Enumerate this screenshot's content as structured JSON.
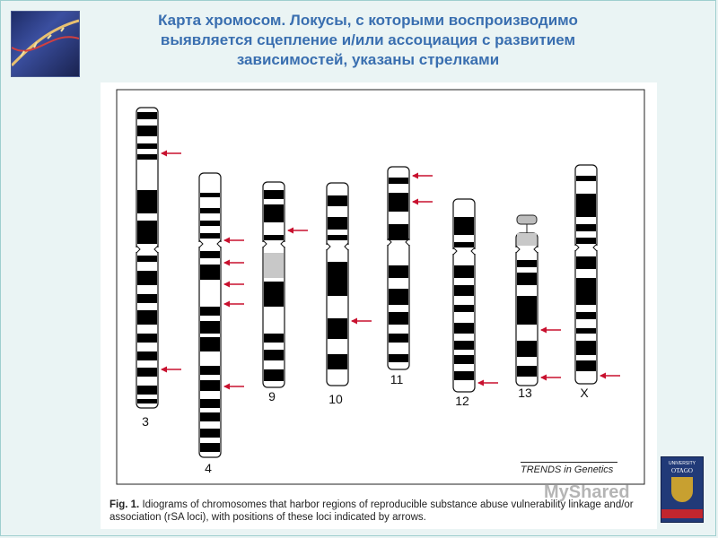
{
  "header": {
    "title_line1": "Карта  хромосом. Локусы, с которыми воспроизводимо",
    "title_line2": "выявляется  сцепление и/или ассоциация с развитием",
    "title_line3": "зависимостей, указаны стрелками"
  },
  "figure": {
    "source": "TRENDS in Genetics",
    "caption_label": "Fig. 1.",
    "caption_text": "Idiograms of chromosomes that harbor regions of reproducible substance abuse vulnerability linkage and/or association (rSA loci), with positions of these loci indicated by arrows.",
    "chromosomes": [
      {
        "label": "3",
        "arrows": 2
      },
      {
        "label": "4",
        "arrows": 5
      },
      {
        "label": "9",
        "arrows": 1
      },
      {
        "label": "10",
        "arrows": 1
      },
      {
        "label": "11",
        "arrows": 2
      },
      {
        "label": "12",
        "arrows": 1
      },
      {
        "label": "13",
        "arrows": 2
      },
      {
        "label": "X",
        "arrows": 1
      }
    ]
  },
  "watermark": "MyShared",
  "logo": {
    "line1": "UNIVERSITY",
    "line2": "OTAGO"
  },
  "colors": {
    "title": "#3a6fb0",
    "arrow": "#c8102e",
    "band": "#000000",
    "background": "#eaf4f4"
  }
}
